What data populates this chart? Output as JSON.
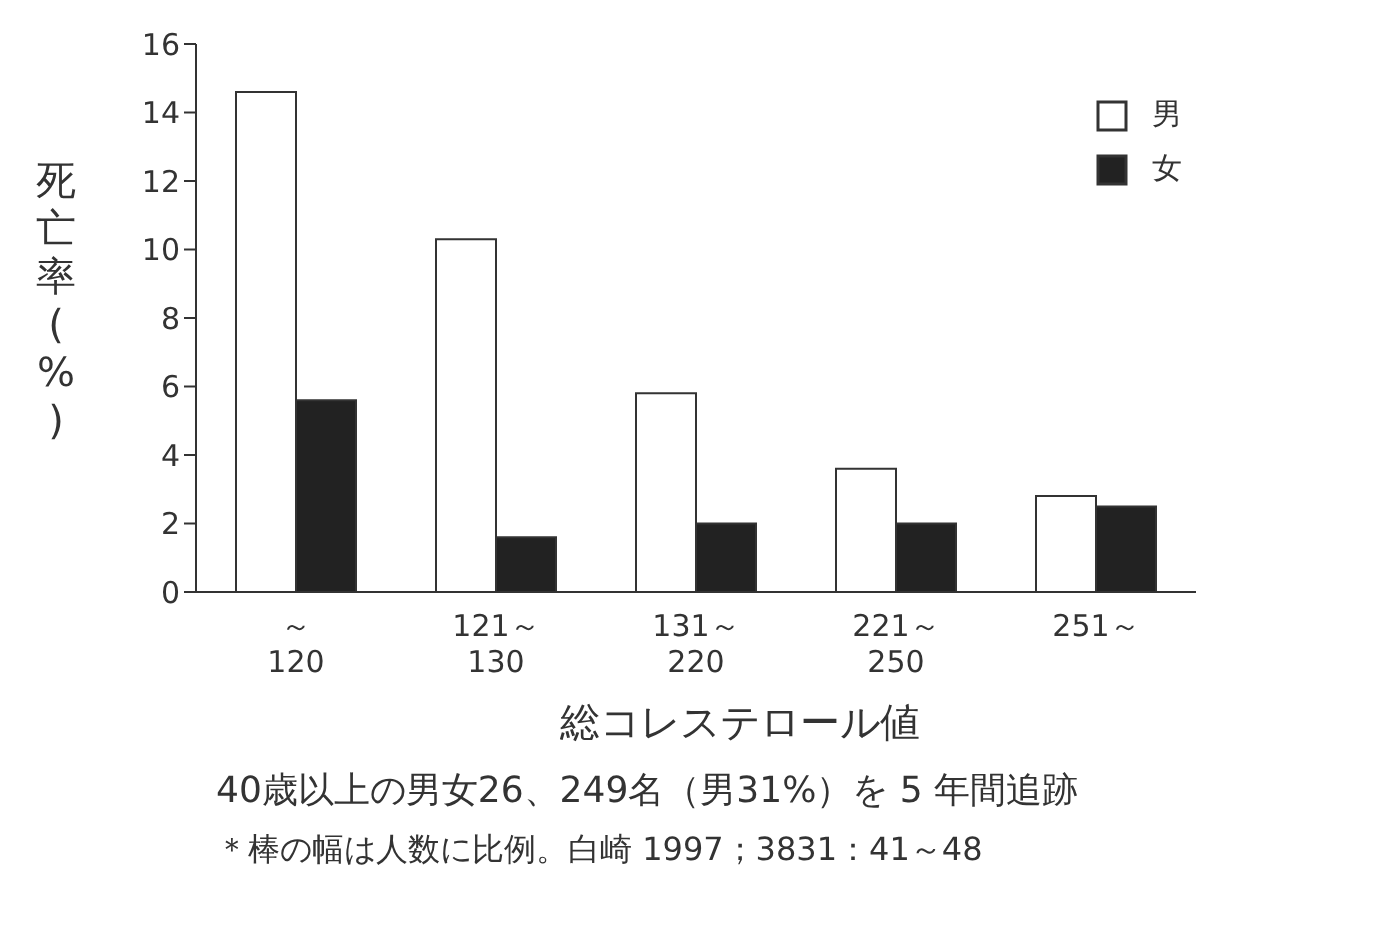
{
  "chart_data": {
    "type": "bar",
    "ylabel": "死亡率(%)",
    "xlabel": "総コレステロール値",
    "categories": [
      "～\n120",
      "121～\n130",
      "131～\n220",
      "221～\n250",
      "251～"
    ],
    "series": [
      {
        "name": "男",
        "color": "#ffffff",
        "values": [
          14.6,
          10.3,
          5.8,
          3.6,
          2.8
        ]
      },
      {
        "name": "女",
        "color": "#222222",
        "values": [
          5.6,
          1.6,
          2.0,
          2.0,
          2.5
        ]
      }
    ],
    "ylim": [
      0,
      16
    ],
    "yticks": [
      0,
      2,
      4,
      6,
      8,
      10,
      12,
      14,
      16
    ],
    "grid": false,
    "legend": "top right",
    "annotations": [
      "40歳以上の男女26、249名（男31%）を 5 年間追跡",
      "＊棒の幅は人数に比例。白崎 1997；3831：41～48"
    ]
  }
}
